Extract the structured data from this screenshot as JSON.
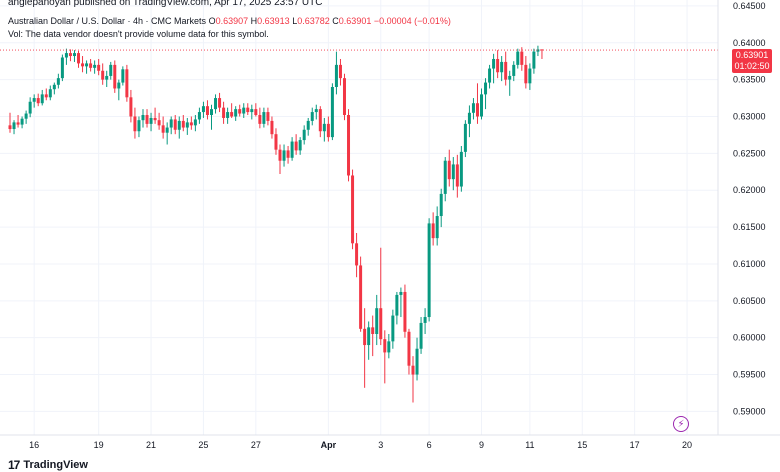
{
  "header": {
    "published": "angiepanoyan published on TradingView.com, Apr 17, 2025 23:57 UTC",
    "symbol": "Australian Dollar / U.S. Dollar · 4h · CMC Markets",
    "o_label": "O",
    "o": "0.63907",
    "h_label": "H",
    "h": "0.63913",
    "l_label": "L",
    "l": "0.63782",
    "c_label": "C",
    "c": "0.63901",
    "change": "−0.00004 (−0.01%)",
    "vol_note": "Vol: The data vendor doesn't provide volume data for this symbol."
  },
  "price_tag": {
    "price": "0.63901",
    "countdown": "01:02:50"
  },
  "footer": {
    "brand": "TradingView"
  },
  "colors": {
    "up": "#089981",
    "down": "#f23645",
    "grid": "#f0f3fa",
    "axis_text": "#131722"
  },
  "icons": {
    "lightning": "lightning-icon",
    "logo": "tradingview-logo-icon"
  },
  "chart_data": {
    "type": "candlestick",
    "title": "",
    "ylim": [
      0.5868,
      0.6458
    ],
    "y_ticks": [
      "0.64500",
      "0.64000",
      "0.63500",
      "0.63000",
      "0.62500",
      "0.62000",
      "0.61500",
      "0.61000",
      "0.60500",
      "0.60000",
      "0.59500",
      "0.59000"
    ],
    "y_tick_values": [
      0.645,
      0.64,
      0.635,
      0.63,
      0.625,
      0.62,
      0.615,
      0.61,
      0.605,
      0.6,
      0.595,
      0.59
    ],
    "x_ticks": [
      {
        "label": "16",
        "index": 6
      },
      {
        "label": "19",
        "index": 22
      },
      {
        "label": "21",
        "index": 35
      },
      {
        "label": "25",
        "index": 48
      },
      {
        "label": "27",
        "index": 61
      },
      {
        "label": "Apr",
        "index": 79
      },
      {
        "label": "3",
        "index": 92
      },
      {
        "label": "6",
        "index": 104
      },
      {
        "label": "9",
        "index": 117
      },
      {
        "label": "11",
        "index": 129
      },
      {
        "label": "15",
        "index": 142
      },
      {
        "label": "17",
        "index": 155
      },
      {
        "label": "20",
        "index": 168
      }
    ],
    "last_price": 0.63901,
    "series": [
      {
        "open": 0.6288,
        "high": 0.6305,
        "low": 0.6278,
        "close": 0.6283
      },
      {
        "open": 0.6283,
        "high": 0.6295,
        "low": 0.6276,
        "close": 0.6292
      },
      {
        "open": 0.6292,
        "high": 0.6302,
        "low": 0.6285,
        "close": 0.6289
      },
      {
        "open": 0.6289,
        "high": 0.63,
        "low": 0.6284,
        "close": 0.6297
      },
      {
        "open": 0.6297,
        "high": 0.6308,
        "low": 0.629,
        "close": 0.6304
      },
      {
        "open": 0.6304,
        "high": 0.6326,
        "low": 0.6299,
        "close": 0.632
      },
      {
        "open": 0.632,
        "high": 0.633,
        "low": 0.6312,
        "close": 0.6325
      },
      {
        "open": 0.6325,
        "high": 0.6331,
        "low": 0.6314,
        "close": 0.6318
      },
      {
        "open": 0.6318,
        "high": 0.6336,
        "low": 0.6315,
        "close": 0.633
      },
      {
        "open": 0.633,
        "high": 0.6338,
        "low": 0.6322,
        "close": 0.6326
      },
      {
        "open": 0.6326,
        "high": 0.6342,
        "low": 0.6322,
        "close": 0.6337
      },
      {
        "open": 0.6337,
        "high": 0.6346,
        "low": 0.633,
        "close": 0.6343
      },
      {
        "open": 0.6343,
        "high": 0.6358,
        "low": 0.6338,
        "close": 0.6352
      },
      {
        "open": 0.6352,
        "high": 0.6384,
        "low": 0.6348,
        "close": 0.638
      },
      {
        "open": 0.638,
        "high": 0.6392,
        "low": 0.637,
        "close": 0.6386
      },
      {
        "open": 0.6386,
        "high": 0.6391,
        "low": 0.6375,
        "close": 0.6382
      },
      {
        "open": 0.6382,
        "high": 0.639,
        "low": 0.6374,
        "close": 0.6386
      },
      {
        "open": 0.6386,
        "high": 0.6389,
        "low": 0.6366,
        "close": 0.6372
      },
      {
        "open": 0.6372,
        "high": 0.6382,
        "low": 0.636,
        "close": 0.6368
      },
      {
        "open": 0.6368,
        "high": 0.6376,
        "low": 0.6358,
        "close": 0.6372
      },
      {
        "open": 0.6372,
        "high": 0.6378,
        "low": 0.6361,
        "close": 0.6366
      },
      {
        "open": 0.6366,
        "high": 0.6376,
        "low": 0.6358,
        "close": 0.637
      },
      {
        "open": 0.637,
        "high": 0.6378,
        "low": 0.6356,
        "close": 0.6362
      },
      {
        "open": 0.6362,
        "high": 0.6372,
        "low": 0.6343,
        "close": 0.635
      },
      {
        "open": 0.635,
        "high": 0.6362,
        "low": 0.634,
        "close": 0.6355
      },
      {
        "open": 0.6355,
        "high": 0.6374,
        "low": 0.635,
        "close": 0.637
      },
      {
        "open": 0.637,
        "high": 0.6376,
        "low": 0.6332,
        "close": 0.6338
      },
      {
        "open": 0.6338,
        "high": 0.635,
        "low": 0.6322,
        "close": 0.6346
      },
      {
        "open": 0.6346,
        "high": 0.6368,
        "low": 0.6342,
        "close": 0.6364
      },
      {
        "open": 0.6364,
        "high": 0.637,
        "low": 0.632,
        "close": 0.6326
      },
      {
        "open": 0.6326,
        "high": 0.6336,
        "low": 0.6292,
        "close": 0.63
      },
      {
        "open": 0.63,
        "high": 0.6312,
        "low": 0.627,
        "close": 0.628
      },
      {
        "open": 0.628,
        "high": 0.63,
        "low": 0.6272,
        "close": 0.6295
      },
      {
        "open": 0.6295,
        "high": 0.631,
        "low": 0.6285,
        "close": 0.6302
      },
      {
        "open": 0.6302,
        "high": 0.631,
        "low": 0.6285,
        "close": 0.629
      },
      {
        "open": 0.629,
        "high": 0.6305,
        "low": 0.628,
        "close": 0.6298
      },
      {
        "open": 0.6298,
        "high": 0.6312,
        "low": 0.629,
        "close": 0.6295
      },
      {
        "open": 0.6295,
        "high": 0.6305,
        "low": 0.6282,
        "close": 0.6288
      },
      {
        "open": 0.6288,
        "high": 0.63,
        "low": 0.627,
        "close": 0.6278
      },
      {
        "open": 0.6278,
        "high": 0.6292,
        "low": 0.6262,
        "close": 0.6285
      },
      {
        "open": 0.6285,
        "high": 0.63,
        "low": 0.6276,
        "close": 0.6296
      },
      {
        "open": 0.6296,
        "high": 0.6302,
        "low": 0.6276,
        "close": 0.6282
      },
      {
        "open": 0.6282,
        "high": 0.63,
        "low": 0.627,
        "close": 0.6294
      },
      {
        "open": 0.6294,
        "high": 0.6302,
        "low": 0.628,
        "close": 0.6285
      },
      {
        "open": 0.6285,
        "high": 0.6298,
        "low": 0.6275,
        "close": 0.6292
      },
      {
        "open": 0.6292,
        "high": 0.63,
        "low": 0.6282,
        "close": 0.6288
      },
      {
        "open": 0.6288,
        "high": 0.6302,
        "low": 0.628,
        "close": 0.6296
      },
      {
        "open": 0.6296,
        "high": 0.6312,
        "low": 0.629,
        "close": 0.6306
      },
      {
        "open": 0.6306,
        "high": 0.632,
        "low": 0.6298,
        "close": 0.6314
      },
      {
        "open": 0.6314,
        "high": 0.6322,
        "low": 0.6296,
        "close": 0.6302
      },
      {
        "open": 0.6302,
        "high": 0.6316,
        "low": 0.6282,
        "close": 0.631
      },
      {
        "open": 0.631,
        "high": 0.633,
        "low": 0.6304,
        "close": 0.6325
      },
      {
        "open": 0.6325,
        "high": 0.6332,
        "low": 0.6306,
        "close": 0.6312
      },
      {
        "open": 0.6312,
        "high": 0.632,
        "low": 0.629,
        "close": 0.6298
      },
      {
        "open": 0.6298,
        "high": 0.6312,
        "low": 0.629,
        "close": 0.6306
      },
      {
        "open": 0.6306,
        "high": 0.6318,
        "low": 0.6298,
        "close": 0.63
      },
      {
        "open": 0.63,
        "high": 0.6314,
        "low": 0.6294,
        "close": 0.631
      },
      {
        "open": 0.631,
        "high": 0.6316,
        "low": 0.63,
        "close": 0.6304
      },
      {
        "open": 0.6304,
        "high": 0.6318,
        "low": 0.6298,
        "close": 0.6312
      },
      {
        "open": 0.6312,
        "high": 0.6318,
        "low": 0.6302,
        "close": 0.6306
      },
      {
        "open": 0.6306,
        "high": 0.6316,
        "low": 0.6296,
        "close": 0.631
      },
      {
        "open": 0.631,
        "high": 0.6318,
        "low": 0.63,
        "close": 0.6302
      },
      {
        "open": 0.6302,
        "high": 0.6312,
        "low": 0.6284,
        "close": 0.629
      },
      {
        "open": 0.629,
        "high": 0.6312,
        "low": 0.6285,
        "close": 0.6306
      },
      {
        "open": 0.6306,
        "high": 0.6312,
        "low": 0.6288,
        "close": 0.6294
      },
      {
        "open": 0.6294,
        "high": 0.63,
        "low": 0.627,
        "close": 0.6276
      },
      {
        "open": 0.6276,
        "high": 0.6284,
        "low": 0.6248,
        "close": 0.6255
      },
      {
        "open": 0.6255,
        "high": 0.6262,
        "low": 0.6222,
        "close": 0.624
      },
      {
        "open": 0.624,
        "high": 0.6262,
        "low": 0.6232,
        "close": 0.6254
      },
      {
        "open": 0.6254,
        "high": 0.626,
        "low": 0.6236,
        "close": 0.6244
      },
      {
        "open": 0.6244,
        "high": 0.6272,
        "low": 0.624,
        "close": 0.6266
      },
      {
        "open": 0.6266,
        "high": 0.6276,
        "low": 0.6248,
        "close": 0.6254
      },
      {
        "open": 0.6254,
        "high": 0.6272,
        "low": 0.6248,
        "close": 0.6268
      },
      {
        "open": 0.6268,
        "high": 0.6288,
        "low": 0.6262,
        "close": 0.6282
      },
      {
        "open": 0.6282,
        "high": 0.6298,
        "low": 0.6274,
        "close": 0.6294
      },
      {
        "open": 0.6294,
        "high": 0.6312,
        "low": 0.6288,
        "close": 0.6306
      },
      {
        "open": 0.6306,
        "high": 0.6316,
        "low": 0.6296,
        "close": 0.631
      },
      {
        "open": 0.631,
        "high": 0.6314,
        "low": 0.6272,
        "close": 0.628
      },
      {
        "open": 0.628,
        "high": 0.6298,
        "low": 0.6266,
        "close": 0.629
      },
      {
        "open": 0.629,
        "high": 0.63,
        "low": 0.6266,
        "close": 0.6272
      },
      {
        "open": 0.6272,
        "high": 0.6345,
        "low": 0.6268,
        "close": 0.634
      },
      {
        "open": 0.634,
        "high": 0.6388,
        "low": 0.633,
        "close": 0.637
      },
      {
        "open": 0.637,
        "high": 0.6378,
        "low": 0.6342,
        "close": 0.6352
      },
      {
        "open": 0.6352,
        "high": 0.6358,
        "low": 0.6295,
        "close": 0.6302
      },
      {
        "open": 0.6302,
        "high": 0.631,
        "low": 0.6212,
        "close": 0.622
      },
      {
        "open": 0.622,
        "high": 0.6228,
        "low": 0.612,
        "close": 0.6128
      },
      {
        "open": 0.6128,
        "high": 0.6142,
        "low": 0.6082,
        "close": 0.6098
      },
      {
        "open": 0.6098,
        "high": 0.611,
        "low": 0.6008,
        "close": 0.6012
      },
      {
        "open": 0.6012,
        "high": 0.604,
        "low": 0.5932,
        "close": 0.599
      },
      {
        "open": 0.599,
        "high": 0.6022,
        "low": 0.597,
        "close": 0.6014
      },
      {
        "open": 0.6014,
        "high": 0.603,
        "low": 0.5975,
        "close": 0.6005
      },
      {
        "open": 0.6005,
        "high": 0.6058,
        "low": 0.599,
        "close": 0.604
      },
      {
        "open": 0.604,
        "high": 0.6122,
        "low": 0.599,
        "close": 0.5998
      },
      {
        "open": 0.5998,
        "high": 0.601,
        "low": 0.5938,
        "close": 0.598
      },
      {
        "open": 0.598,
        "high": 0.6005,
        "low": 0.5972,
        "close": 0.5995
      },
      {
        "open": 0.5995,
        "high": 0.6038,
        "low": 0.5985,
        "close": 0.603
      },
      {
        "open": 0.603,
        "high": 0.6062,
        "low": 0.6018,
        "close": 0.6058
      },
      {
        "open": 0.6058,
        "high": 0.6068,
        "low": 0.6028,
        "close": 0.6062
      },
      {
        "open": 0.6062,
        "high": 0.6072,
        "low": 0.6,
        "close": 0.6008
      },
      {
        "open": 0.6008,
        "high": 0.6012,
        "low": 0.595,
        "close": 0.5962
      },
      {
        "open": 0.5962,
        "high": 0.5975,
        "low": 0.5912,
        "close": 0.595
      },
      {
        "open": 0.595,
        "high": 0.6,
        "low": 0.5942,
        "close": 0.5985
      },
      {
        "open": 0.5985,
        "high": 0.6028,
        "low": 0.5978,
        "close": 0.602
      },
      {
        "open": 0.602,
        "high": 0.604,
        "low": 0.6005,
        "close": 0.6028
      },
      {
        "open": 0.6028,
        "high": 0.6162,
        "low": 0.6022,
        "close": 0.6155
      },
      {
        "open": 0.6155,
        "high": 0.617,
        "low": 0.6125,
        "close": 0.6135
      },
      {
        "open": 0.6135,
        "high": 0.6178,
        "low": 0.6125,
        "close": 0.6165
      },
      {
        "open": 0.6165,
        "high": 0.6202,
        "low": 0.615,
        "close": 0.6195
      },
      {
        "open": 0.6195,
        "high": 0.6245,
        "low": 0.6185,
        "close": 0.624
      },
      {
        "open": 0.624,
        "high": 0.6255,
        "low": 0.6205,
        "close": 0.6215
      },
      {
        "open": 0.6215,
        "high": 0.6245,
        "low": 0.62,
        "close": 0.6235
      },
      {
        "open": 0.6235,
        "high": 0.6248,
        "low": 0.619,
        "close": 0.6205
      },
      {
        "open": 0.6205,
        "high": 0.626,
        "low": 0.6198,
        "close": 0.6252
      },
      {
        "open": 0.6252,
        "high": 0.6295,
        "low": 0.6245,
        "close": 0.629
      },
      {
        "open": 0.629,
        "high": 0.6315,
        "low": 0.6272,
        "close": 0.6305
      },
      {
        "open": 0.6305,
        "high": 0.6325,
        "low": 0.6296,
        "close": 0.6318
      },
      {
        "open": 0.6318,
        "high": 0.6345,
        "low": 0.629,
        "close": 0.63
      },
      {
        "open": 0.63,
        "high": 0.6338,
        "low": 0.6296,
        "close": 0.633
      },
      {
        "open": 0.633,
        "high": 0.6352,
        "low": 0.631,
        "close": 0.6346
      },
      {
        "open": 0.6346,
        "high": 0.637,
        "low": 0.6338,
        "close": 0.6365
      },
      {
        "open": 0.6365,
        "high": 0.6385,
        "low": 0.6345,
        "close": 0.6378
      },
      {
        "open": 0.6378,
        "high": 0.639,
        "low": 0.6352,
        "close": 0.636
      },
      {
        "open": 0.636,
        "high": 0.6382,
        "low": 0.6348,
        "close": 0.6374
      },
      {
        "open": 0.6374,
        "high": 0.6388,
        "low": 0.6342,
        "close": 0.635
      },
      {
        "open": 0.635,
        "high": 0.6362,
        "low": 0.6328,
        "close": 0.6355
      },
      {
        "open": 0.6355,
        "high": 0.6375,
        "low": 0.6348,
        "close": 0.637
      },
      {
        "open": 0.637,
        "high": 0.6392,
        "low": 0.6365,
        "close": 0.6388
      },
      {
        "open": 0.6388,
        "high": 0.6394,
        "low": 0.6362,
        "close": 0.637
      },
      {
        "open": 0.637,
        "high": 0.6382,
        "low": 0.6338,
        "close": 0.6345
      },
      {
        "open": 0.6345,
        "high": 0.6372,
        "low": 0.6336,
        "close": 0.6365
      },
      {
        "open": 0.6365,
        "high": 0.6392,
        "low": 0.6358,
        "close": 0.6388
      },
      {
        "open": 0.6388,
        "high": 0.6396,
        "low": 0.6382,
        "close": 0.6391
      },
      {
        "open": 0.6391,
        "high": 0.6391,
        "low": 0.6378,
        "close": 0.639
      }
    ]
  }
}
